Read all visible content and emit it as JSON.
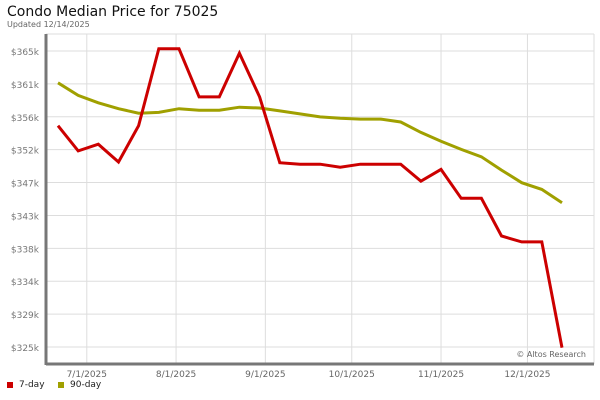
{
  "chart_data": {
    "type": "line",
    "title": "Condo Median Price for 75025",
    "subtitle": "Updated 12/14/2025",
    "watermark": "© Altos Research",
    "x": [
      "2025-06-21",
      "2025-06-28",
      "2025-07-05",
      "2025-07-12",
      "2025-07-19",
      "2025-07-26",
      "2025-08-02",
      "2025-08-09",
      "2025-08-16",
      "2025-08-23",
      "2025-08-30",
      "2025-09-06",
      "2025-09-13",
      "2025-09-20",
      "2025-09-27",
      "2025-10-04",
      "2025-10-11",
      "2025-10-18",
      "2025-10-25",
      "2025-11-01",
      "2025-11-08",
      "2025-11-15",
      "2025-11-22",
      "2025-11-29",
      "2025-12-06",
      "2025-12-13"
    ],
    "x_ticks": [
      "7/1/2025",
      "8/1/2025",
      "9/1/2025",
      "10/1/2025",
      "11/1/2025",
      "12/1/2025"
    ],
    "x_tick_dates": [
      "2025-07-01",
      "2025-08-01",
      "2025-09-01",
      "2025-10-01",
      "2025-11-01",
      "2025-12-01"
    ],
    "y_ticks": [
      "$325k",
      "$329k",
      "$334k",
      "$338k",
      "$343k",
      "$347k",
      "$352k",
      "$356k",
      "$361k",
      "$365k"
    ],
    "ylim": [
      323000,
      367000
    ],
    "y_tick_range": [
      325000,
      365000
    ],
    "grid": true,
    "legend_position": "bottom-left",
    "series": [
      {
        "name": "7-day",
        "color": "#cc0000",
        "values": [
          354900,
          351500,
          352400,
          350000,
          354900,
          365300,
          365300,
          358800,
          358800,
          364700,
          358800,
          349900,
          349700,
          349700,
          349300,
          349700,
          349700,
          349700,
          347400,
          349000,
          345100,
          345100,
          340000,
          339200,
          339200,
          324900
        ]
      },
      {
        "name": "90-day",
        "color": "#a0a000",
        "values": [
          360700,
          359000,
          358000,
          357200,
          356600,
          356700,
          357200,
          357000,
          357000,
          357400,
          357300,
          356900,
          356500,
          356100,
          355900,
          355800,
          355800,
          355400,
          354000,
          352800,
          351700,
          350700,
          348900,
          347200,
          346300,
          344500
        ]
      }
    ]
  }
}
